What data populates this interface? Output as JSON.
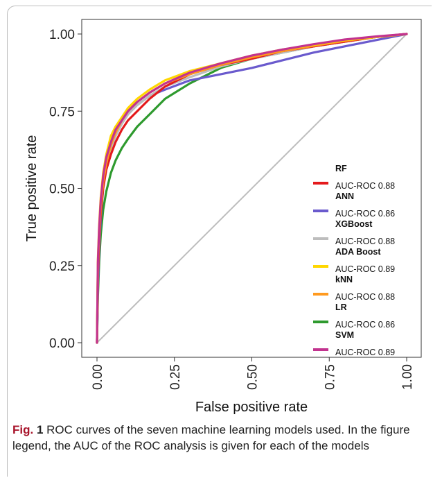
{
  "caption": {
    "label": "Fig.",
    "number": "1",
    "text": "ROC curves of the seven machine learning models used. In the figure legend, the AUC of the ROC analysis is given for each of the models"
  },
  "chart_data": {
    "type": "line",
    "xlabel": "False positive rate",
    "ylabel": "True positive rate",
    "xlim": [
      0,
      1
    ],
    "ylim": [
      0,
      1
    ],
    "x_ticks": [
      "0.00",
      "0.25",
      "0.50",
      "0.75",
      "1.00"
    ],
    "y_ticks": [
      "0.00",
      "0.25",
      "0.50",
      "0.75",
      "1.00"
    ],
    "grid": false,
    "legend_position": "right",
    "diagonal_color": "#bdbdbd",
    "series": [
      {
        "name": "RF",
        "auc_label": "AUC-ROC 0.88",
        "color": "#e41a1c",
        "x": [
          0,
          0.003,
          0.007,
          0.012,
          0.02,
          0.03,
          0.045,
          0.06,
          0.08,
          0.1,
          0.13,
          0.17,
          0.22,
          0.3,
          0.4,
          0.5,
          0.6,
          0.7,
          0.8,
          0.9,
          1.0
        ],
        "y": [
          0,
          0.22,
          0.33,
          0.42,
          0.5,
          0.56,
          0.61,
          0.65,
          0.69,
          0.72,
          0.75,
          0.79,
          0.83,
          0.87,
          0.9,
          0.92,
          0.945,
          0.96,
          0.975,
          0.99,
          1.0
        ]
      },
      {
        "name": "ANN",
        "auc_label": "AUC-ROC 0.86",
        "color": "#6a5acd",
        "x": [
          0,
          0.003,
          0.007,
          0.012,
          0.02,
          0.03,
          0.045,
          0.06,
          0.08,
          0.1,
          0.13,
          0.17,
          0.22,
          0.3,
          0.4,
          0.5,
          0.6,
          0.7,
          0.8,
          0.9,
          1.0
        ],
        "y": [
          0,
          0.18,
          0.3,
          0.4,
          0.5,
          0.57,
          0.63,
          0.67,
          0.71,
          0.74,
          0.77,
          0.8,
          0.82,
          0.85,
          0.87,
          0.89,
          0.915,
          0.94,
          0.96,
          0.98,
          1.0
        ]
      },
      {
        "name": "XGBoost",
        "auc_label": "AUC-ROC 0.88",
        "color": "#bdbdbd",
        "x": [
          0,
          0.003,
          0.007,
          0.012,
          0.02,
          0.03,
          0.045,
          0.06,
          0.08,
          0.1,
          0.13,
          0.17,
          0.22,
          0.3,
          0.4,
          0.5,
          0.6,
          0.7,
          0.8,
          0.9,
          1.0
        ],
        "y": [
          0,
          0.24,
          0.34,
          0.43,
          0.51,
          0.57,
          0.63,
          0.67,
          0.71,
          0.74,
          0.77,
          0.8,
          0.83,
          0.86,
          0.895,
          0.92,
          0.94,
          0.96,
          0.975,
          0.99,
          1.0
        ]
      },
      {
        "name": "ADA Boost",
        "auc_label": "AUC-ROC 0.89",
        "color": "#ffd700",
        "x": [
          0,
          0.003,
          0.007,
          0.012,
          0.02,
          0.03,
          0.045,
          0.06,
          0.08,
          0.1,
          0.13,
          0.17,
          0.22,
          0.3,
          0.4,
          0.5,
          0.6,
          0.7,
          0.8,
          0.9,
          1.0
        ],
        "y": [
          0,
          0.27,
          0.38,
          0.47,
          0.55,
          0.61,
          0.67,
          0.7,
          0.73,
          0.76,
          0.79,
          0.82,
          0.85,
          0.88,
          0.905,
          0.93,
          0.95,
          0.965,
          0.98,
          0.99,
          1.0
        ]
      },
      {
        "name": "kNN",
        "auc_label": "AUC-ROC 0.88",
        "color": "#ff9a1f",
        "x": [
          0,
          0.003,
          0.007,
          0.012,
          0.02,
          0.03,
          0.045,
          0.06,
          0.08,
          0.1,
          0.13,
          0.17,
          0.22,
          0.3,
          0.4,
          0.5,
          0.6,
          0.7,
          0.8,
          0.9,
          1.0
        ],
        "y": [
          0,
          0.25,
          0.35,
          0.44,
          0.52,
          0.58,
          0.64,
          0.68,
          0.72,
          0.75,
          0.78,
          0.81,
          0.84,
          0.87,
          0.9,
          0.925,
          0.945,
          0.962,
          0.978,
          0.99,
          1.0
        ]
      },
      {
        "name": "LR",
        "auc_label": "AUC-ROC 0.86",
        "color": "#2e9a2e",
        "x": [
          0,
          0.003,
          0.007,
          0.012,
          0.02,
          0.03,
          0.045,
          0.06,
          0.08,
          0.1,
          0.13,
          0.17,
          0.22,
          0.3,
          0.4,
          0.5,
          0.6,
          0.7,
          0.8,
          0.9,
          1.0
        ],
        "y": [
          0,
          0.15,
          0.26,
          0.35,
          0.43,
          0.49,
          0.55,
          0.59,
          0.63,
          0.66,
          0.7,
          0.74,
          0.79,
          0.84,
          0.89,
          0.92,
          0.94,
          0.96,
          0.975,
          0.99,
          1.0
        ]
      },
      {
        "name": "SVM",
        "auc_label": "AUC-ROC 0.89",
        "color": "#c2338f",
        "x": [
          0,
          0.003,
          0.007,
          0.012,
          0.02,
          0.03,
          0.045,
          0.06,
          0.08,
          0.1,
          0.13,
          0.17,
          0.22,
          0.3,
          0.4,
          0.5,
          0.6,
          0.7,
          0.8,
          0.9,
          1.0
        ],
        "y": [
          0,
          0.26,
          0.37,
          0.46,
          0.54,
          0.6,
          0.65,
          0.69,
          0.72,
          0.75,
          0.78,
          0.81,
          0.84,
          0.875,
          0.905,
          0.93,
          0.95,
          0.967,
          0.982,
          0.992,
          1.0
        ]
      }
    ]
  }
}
